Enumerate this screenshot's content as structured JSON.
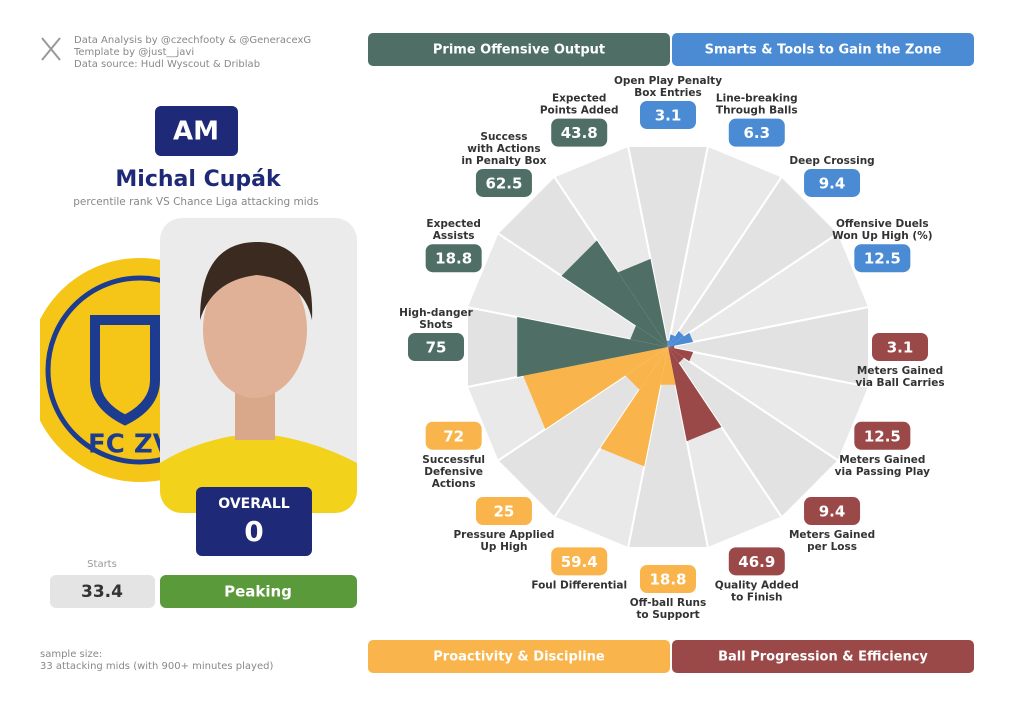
{
  "header": {
    "credits": [
      "Data Analysis by @czechfooty & @GeneracexG",
      "Template by @just__javi",
      "Data source: Hudl Wyscout & Driblab"
    ]
  },
  "player": {
    "position": "AM",
    "name": "Michal Cupák",
    "subtitle": "percentile rank VS Chance Liga attacking mids",
    "logo_text": "FC ZV",
    "overall_label": "OVERALL",
    "overall_value": "0",
    "starts_label": "Starts",
    "starts_value": "33.4",
    "status": "Peaking"
  },
  "footer": {
    "lines": [
      "sample size:",
      "33 attacking mids (with 900+ minutes played)"
    ]
  },
  "chart_data": {
    "type": "pizza",
    "series": [
      {
        "name": "Smarts & Tools to Gain the Zone",
        "color": "#4a8bd4",
        "categories": [
          "Open Play Penalty\nBox Entries",
          "Line-breaking\nThrough Balls",
          "Deep Crossing",
          "Offensive Duels\nWon Up High (%)"
        ],
        "values": [
          3.1,
          6.3,
          9.4,
          12.5
        ]
      },
      {
        "name": "Ball Progression & Efficiency",
        "color": "#9b4848",
        "categories": [
          "Meters Gained\nvia Ball Carries",
          "Meters Gained\nvia Passing Play",
          "Meters Gained\nper Loss",
          "Quality Added\nto Finish"
        ],
        "values": [
          3.1,
          12.5,
          9.4,
          46.9
        ]
      },
      {
        "name": "Proactivity & Discipline",
        "color": "#f9b54c",
        "categories": [
          "Off-ball Runs\nto Support",
          "Foul Differential",
          "Pressure Applied\nUp High",
          "Successful\nDefensive\nActions"
        ],
        "values": [
          18.8,
          59.4,
          25,
          72
        ]
      },
      {
        "name": "Prime Offensive Output",
        "color": "#4f6f66",
        "categories": [
          "High-danger\nShots",
          "Expected\nAssists",
          "Success\nwith Actions\nin Penalty Box",
          "Expected\nPoints Added"
        ],
        "values": [
          75,
          18.8,
          62.5,
          43.8
        ]
      }
    ],
    "ylim": [
      0,
      100
    ]
  }
}
